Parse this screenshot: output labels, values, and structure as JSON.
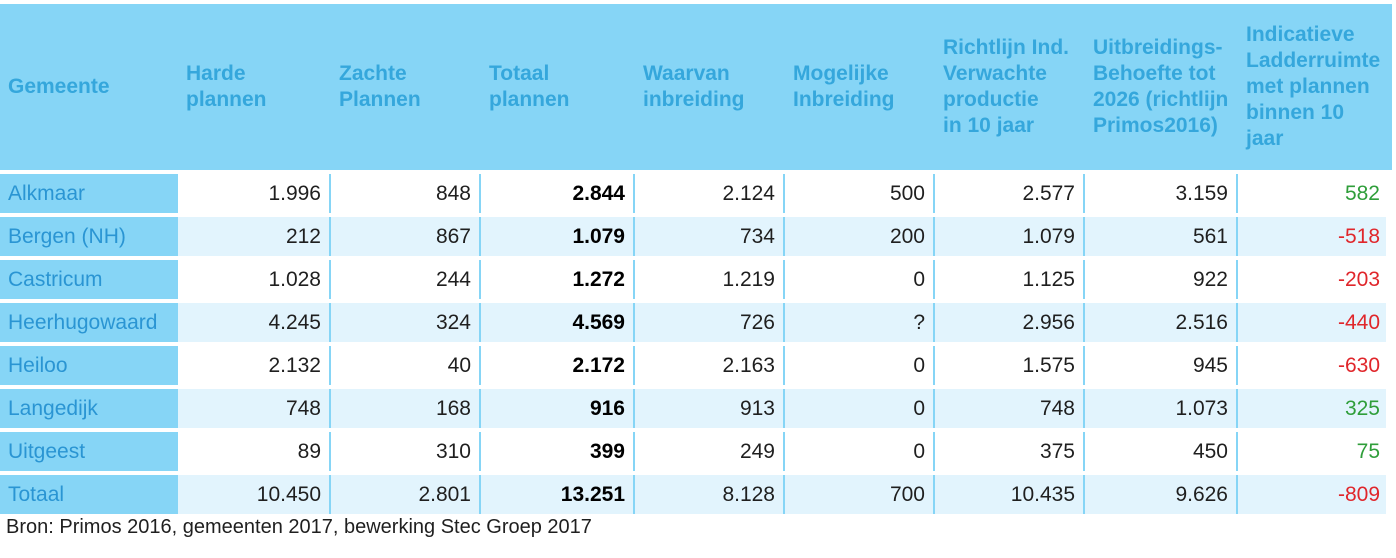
{
  "table": {
    "headers": [
      "Gemeente",
      "Harde\nplannen",
      "Zachte\nPlannen",
      "Totaal\nplannen",
      "Waarvan\ninbreiding",
      "Mogelijke\nInbreiding",
      "Richtlijn Ind.\nVerwachte\nproductie\nin 10 jaar",
      "Uitbreidings-\nBehoefte tot\n2026 (richtlijn\nPrimos2016)",
      "Indicatieve\nLadderruimte\nmet plannen\nbinnen 10\njaar"
    ],
    "rows": [
      [
        "Alkmaar",
        "1.996",
        "848",
        "2.844",
        "2.124",
        "500",
        "2.577",
        "3.159",
        "582"
      ],
      [
        "Bergen (NH)",
        "212",
        "867",
        "1.079",
        "734",
        "200",
        "1.079",
        "561",
        "-518"
      ],
      [
        "Castricum",
        "1.028",
        "244",
        "1.272",
        "1.219",
        "0",
        "1.125",
        "922",
        "-203"
      ],
      [
        "Heerhugowaard",
        "4.245",
        "324",
        "4.569",
        "726",
        "?",
        "2.956",
        "2.516",
        "-440"
      ],
      [
        "Heiloo",
        "2.132",
        "40",
        "2.172",
        "2.163",
        "0",
        "1.575",
        "945",
        "-630"
      ],
      [
        "Langedijk",
        "748",
        "168",
        "916",
        "913",
        "0",
        "748",
        "1.073",
        "325"
      ],
      [
        "Uitgeest",
        "89",
        "310",
        "399",
        "249",
        "0",
        "375",
        "450",
        "75"
      ],
      [
        "Totaal",
        "10.450",
        "2.801",
        "13.251",
        "8.128",
        "700",
        "10.435",
        "9.626",
        "-809"
      ]
    ]
  },
  "source": "Bron: Primos 2016, gemeenten 2017, bewerking Stec Groep 2017",
  "colors": {
    "header_bg": "#86d5f6",
    "header_text": "#35a7dc",
    "name_text": "#2a95d3",
    "alt_row_bg": "#e2f4fd",
    "positive": "#2f9e3a",
    "negative": "#e0262b"
  }
}
